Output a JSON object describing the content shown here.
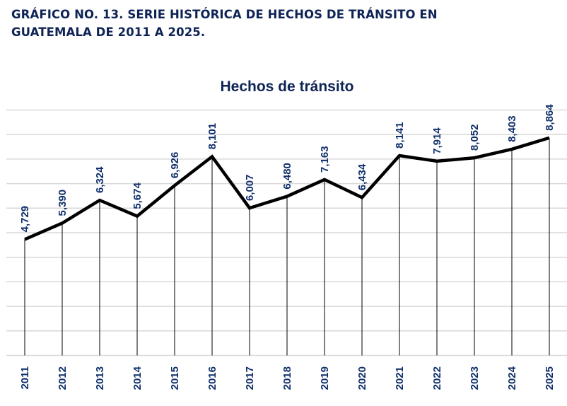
{
  "heading": {
    "line1": "GRÁFICO NO. 13. SERIE HISTÓRICA DE HECHOS DE TRÁNSITO EN",
    "line2": "GUATEMALA DE 2011 A 2025."
  },
  "colors": {
    "heading": "#0f2456",
    "labels": "#0f2f6b",
    "line": "#000000",
    "grid": "#d9d9d9"
  },
  "chart_data": {
    "type": "line",
    "title": "Hechos de tránsito",
    "xlabel": "",
    "ylabel": "",
    "categories": [
      "2011",
      "2012",
      "2013",
      "2014",
      "2015",
      "2016",
      "2017",
      "2018",
      "2019",
      "2020",
      "2021",
      "2022",
      "2023",
      "2024",
      "2025"
    ],
    "series": [
      {
        "name": "Hechos de tránsito",
        "values": [
          4729,
          5390,
          6324,
          5674,
          6926,
          8101,
          6007,
          6480,
          7163,
          6434,
          8141,
          7914,
          8052,
          8403,
          8864
        ],
        "labels": [
          "4,729",
          "5,390",
          "6,324",
          "5,674",
          "6,926",
          "8,101",
          "6,007",
          "6,480",
          "7,163",
          "6,434",
          "8,141",
          "7,914",
          "8,052",
          "8,403",
          "8,864"
        ]
      }
    ],
    "ylim": [
      0,
      10000
    ],
    "grid": true,
    "gridlines": 11,
    "legend": "none",
    "drop_lines": true
  }
}
